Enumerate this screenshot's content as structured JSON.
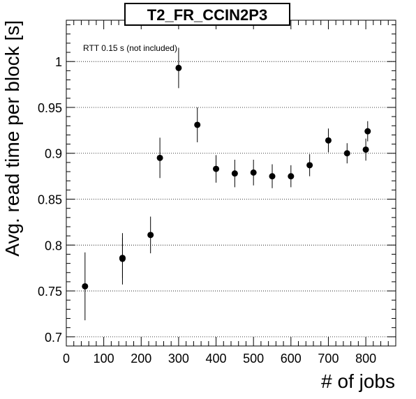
{
  "chart_data": {
    "type": "scatter",
    "title": "T2_FR_CCIN2P3",
    "xlabel": "# of jobs",
    "ylabel": "Avg. read time per block [s]",
    "annotation": "RTT 0.15 s (not included)",
    "xlim": [
      0,
      880
    ],
    "ylim": [
      0.69,
      1.045
    ],
    "x_ticks": [
      0,
      100,
      200,
      300,
      400,
      500,
      600,
      700,
      800
    ],
    "y_ticks": [
      0.7,
      0.75,
      0.8,
      0.85,
      0.9,
      0.95,
      1
    ],
    "y_tick_labels": [
      "0.7",
      "0.75",
      "0.8",
      "0.85",
      "0.9",
      "0.95",
      "1"
    ],
    "grid": "horizontal dotted at major y ticks",
    "series": [
      {
        "marker_color": "#000000",
        "points": [
          {
            "x": 50,
            "y": 0.755,
            "err": 0.037
          },
          {
            "x": 150,
            "y": 0.786,
            "err": 0.022
          },
          {
            "x": 150,
            "y": 0.785,
            "err": 0.028
          },
          {
            "x": 225,
            "y": 0.811,
            "err": 0.02
          },
          {
            "x": 250,
            "y": 0.895,
            "err": 0.022
          },
          {
            "x": 300,
            "y": 0.993,
            "err": 0.022
          },
          {
            "x": 350,
            "y": 0.931,
            "err": 0.019
          },
          {
            "x": 400,
            "y": 0.883,
            "err": 0.015
          },
          {
            "x": 450,
            "y": 0.878,
            "err": 0.015
          },
          {
            "x": 500,
            "y": 0.879,
            "err": 0.014
          },
          {
            "x": 550,
            "y": 0.875,
            "err": 0.013
          },
          {
            "x": 600,
            "y": 0.875,
            "err": 0.012
          },
          {
            "x": 650,
            "y": 0.887,
            "err": 0.012
          },
          {
            "x": 700,
            "y": 0.914,
            "err": 0.013
          },
          {
            "x": 750,
            "y": 0.9,
            "err": 0.011
          },
          {
            "x": 800,
            "y": 0.904,
            "err": 0.012
          },
          {
            "x": 805,
            "y": 0.924,
            "err": 0.011
          }
        ]
      }
    ]
  }
}
